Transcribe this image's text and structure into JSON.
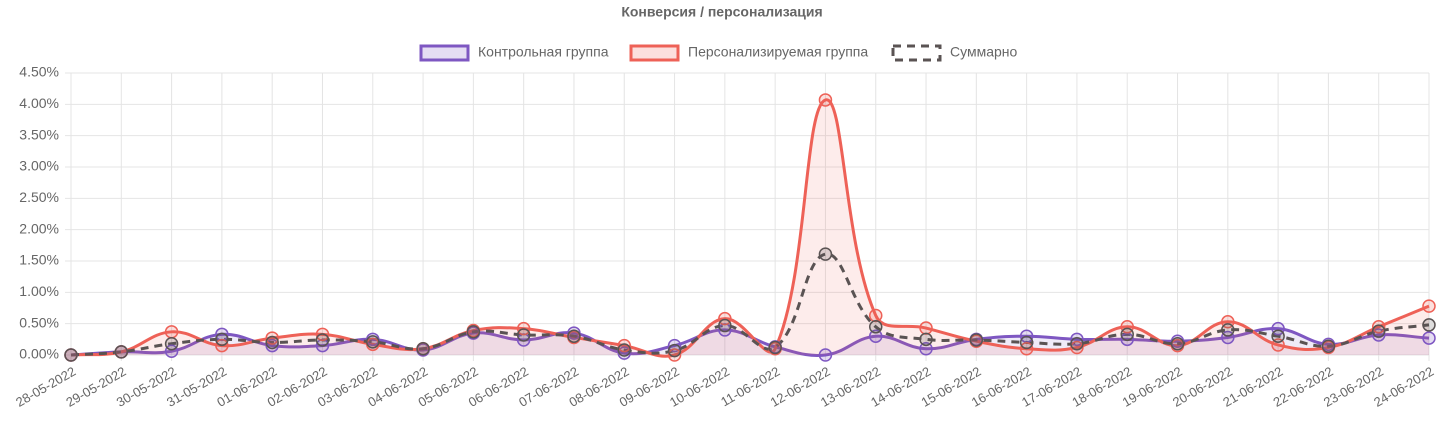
{
  "chart_data": {
    "type": "line",
    "title": "Конверсия / персонализация",
    "categories": [
      "28-05-2022",
      "29-05-2022",
      "30-05-2022",
      "31-05-2022",
      "01-06-2022",
      "02-06-2022",
      "03-06-2022",
      "04-06-2022",
      "05-06-2022",
      "06-06-2022",
      "07-06-2022",
      "08-06-2022",
      "09-06-2022",
      "10-06-2022",
      "11-06-2022",
      "12-06-2022",
      "13-06-2022",
      "14-06-2022",
      "15-06-2022",
      "16-06-2022",
      "17-06-2022",
      "18-06-2022",
      "19-06-2022",
      "20-06-2022",
      "21-06-2022",
      "22-06-2022",
      "23-06-2022",
      "24-06-2022"
    ],
    "series": [
      {
        "name": "Контрольная группа",
        "color": "#7e57c2",
        "fill": true,
        "dashed": false,
        "values": [
          0.0,
          0.05,
          0.06,
          0.33,
          0.15,
          0.15,
          0.25,
          0.08,
          0.35,
          0.24,
          0.35,
          0.03,
          0.15,
          0.4,
          0.13,
          0.0,
          0.3,
          0.1,
          0.25,
          0.3,
          0.25,
          0.25,
          0.22,
          0.28,
          0.42,
          0.17,
          0.32,
          0.27
        ]
      },
      {
        "name": "Персонализируемая группа",
        "color": "#ee6157",
        "fill": true,
        "dashed": false,
        "values": [
          0.0,
          0.05,
          0.37,
          0.15,
          0.27,
          0.33,
          0.17,
          0.1,
          0.39,
          0.42,
          0.28,
          0.15,
          0.0,
          0.58,
          0.1,
          4.07,
          0.63,
          0.43,
          0.22,
          0.1,
          0.12,
          0.45,
          0.15,
          0.53,
          0.16,
          0.12,
          0.45,
          0.78
        ]
      },
      {
        "name": "Суммарно",
        "color": "#5a5353",
        "fill": false,
        "dashed": true,
        "values": [
          0.0,
          0.05,
          0.18,
          0.25,
          0.2,
          0.24,
          0.21,
          0.1,
          0.37,
          0.32,
          0.3,
          0.08,
          0.07,
          0.47,
          0.12,
          1.61,
          0.45,
          0.25,
          0.24,
          0.2,
          0.18,
          0.33,
          0.18,
          0.4,
          0.3,
          0.14,
          0.38,
          0.48
        ]
      }
    ],
    "ylim": [
      0,
      4.5
    ],
    "yticks": [
      {
        "value": 0,
        "label": "0.00%"
      },
      {
        "value": 0.5,
        "label": "0.50%"
      },
      {
        "value": 1,
        "label": "1.00%"
      },
      {
        "value": 1.5,
        "label": "1.50%"
      },
      {
        "value": 2,
        "label": "2.00%"
      },
      {
        "value": 2.5,
        "label": "2.50%"
      },
      {
        "value": 3,
        "label": "3.00%"
      },
      {
        "value": 3.5,
        "label": "3.50%"
      },
      {
        "value": 4,
        "label": "4.00%"
      },
      {
        "value": 4.5,
        "label": "4.50%"
      }
    ],
    "grid": true,
    "legend": "top"
  }
}
